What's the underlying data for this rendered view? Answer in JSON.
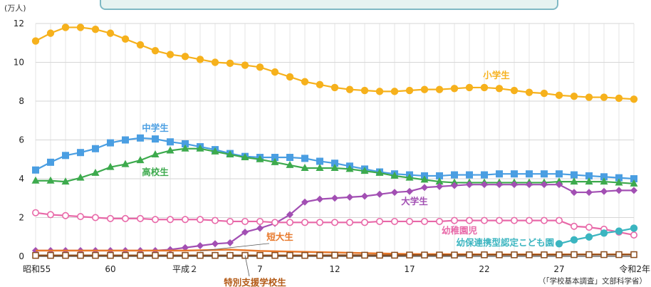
{
  "chart_data": {
    "type": "line",
    "y_unit": "(万人)",
    "ylim": [
      0,
      12
    ],
    "y_ticks": [
      0,
      2,
      4,
      6,
      8,
      10,
      12
    ],
    "x_range": [
      1980,
      2020
    ],
    "x_ticks": [
      {
        "year": 1980,
        "label": "昭和55"
      },
      {
        "year": 1985,
        "label": "60"
      },
      {
        "year": 1990,
        "label": "平成２"
      },
      {
        "year": 1995,
        "label": "7"
      },
      {
        "year": 2000,
        "label": "12"
      },
      {
        "year": 2005,
        "label": "17"
      },
      {
        "year": 2010,
        "label": "22"
      },
      {
        "year": 2015,
        "label": "27"
      },
      {
        "year": 2020,
        "label": "令和2年"
      }
    ],
    "source": "（「学校基本調査」文部科学省）",
    "grid": true,
    "series": [
      {
        "name": "小学生",
        "color": "#f6b11c",
        "marker": "circle",
        "x": [
          1980,
          1981,
          1982,
          1983,
          1984,
          1985,
          1986,
          1987,
          1988,
          1989,
          1990,
          1991,
          1992,
          1993,
          1994,
          1995,
          1996,
          1997,
          1998,
          1999,
          2000,
          2001,
          2002,
          2003,
          2004,
          2005,
          2006,
          2007,
          2008,
          2009,
          2010,
          2011,
          2012,
          2013,
          2014,
          2015,
          2016,
          2017,
          2018,
          2019,
          2020
        ],
        "values": [
          11.1,
          11.5,
          11.8,
          11.8,
          11.7,
          11.5,
          11.2,
          10.9,
          10.6,
          10.4,
          10.3,
          10.15,
          10.0,
          9.95,
          9.85,
          9.75,
          9.5,
          9.25,
          9.0,
          8.85,
          8.7,
          8.6,
          8.55,
          8.5,
          8.5,
          8.55,
          8.6,
          8.6,
          8.65,
          8.7,
          8.7,
          8.65,
          8.55,
          8.45,
          8.4,
          8.3,
          8.25,
          8.2,
          8.2,
          8.15,
          8.1
        ]
      },
      {
        "name": "中学生",
        "color": "#4a9ee2",
        "marker": "square",
        "x": [
          1980,
          1981,
          1982,
          1983,
          1984,
          1985,
          1986,
          1987,
          1988,
          1989,
          1990,
          1991,
          1992,
          1993,
          1994,
          1995,
          1996,
          1997,
          1998,
          1999,
          2000,
          2001,
          2002,
          2003,
          2004,
          2005,
          2006,
          2007,
          2008,
          2009,
          2010,
          2011,
          2012,
          2013,
          2014,
          2015,
          2016,
          2017,
          2018,
          2019,
          2020
        ],
        "values": [
          4.45,
          4.85,
          5.2,
          5.35,
          5.55,
          5.85,
          6.0,
          6.1,
          6.05,
          5.9,
          5.8,
          5.65,
          5.5,
          5.3,
          5.15,
          5.1,
          5.1,
          5.1,
          5.05,
          4.9,
          4.8,
          4.65,
          4.5,
          4.35,
          4.25,
          4.2,
          4.15,
          4.15,
          4.2,
          4.2,
          4.2,
          4.25,
          4.25,
          4.25,
          4.25,
          4.25,
          4.2,
          4.15,
          4.1,
          4.05,
          4.0
        ]
      },
      {
        "name": "高校生",
        "color": "#3daa4d",
        "marker": "triangle",
        "x": [
          1980,
          1981,
          1982,
          1983,
          1984,
          1985,
          1986,
          1987,
          1988,
          1989,
          1990,
          1991,
          1992,
          1993,
          1994,
          1995,
          1996,
          1997,
          1998,
          1999,
          2000,
          2001,
          2002,
          2003,
          2004,
          2005,
          2006,
          2007,
          2008,
          2009,
          2010,
          2011,
          2012,
          2013,
          2014,
          2015,
          2016,
          2017,
          2018,
          2019,
          2020
        ],
        "values": [
          3.9,
          3.9,
          3.85,
          4.05,
          4.3,
          4.6,
          4.75,
          4.95,
          5.25,
          5.45,
          5.55,
          5.55,
          5.4,
          5.25,
          5.1,
          5.0,
          4.85,
          4.7,
          4.55,
          4.55,
          4.55,
          4.5,
          4.4,
          4.3,
          4.15,
          4.05,
          3.95,
          3.85,
          3.8,
          3.8,
          3.8,
          3.8,
          3.8,
          3.8,
          3.8,
          3.85,
          3.85,
          3.85,
          3.85,
          3.8,
          3.75
        ]
      },
      {
        "name": "大学生",
        "color": "#a24fb3",
        "marker": "diamond",
        "x": [
          1980,
          1981,
          1982,
          1983,
          1984,
          1985,
          1986,
          1987,
          1988,
          1989,
          1990,
          1991,
          1992,
          1993,
          1994,
          1995,
          1996,
          1997,
          1998,
          1999,
          2000,
          2001,
          2002,
          2003,
          2004,
          2005,
          2006,
          2007,
          2008,
          2009,
          2010,
          2011,
          2012,
          2013,
          2014,
          2015,
          2016,
          2017,
          2018,
          2019,
          2020
        ],
        "values": [
          0.3,
          0.3,
          0.3,
          0.3,
          0.3,
          0.3,
          0.3,
          0.3,
          0.3,
          0.35,
          0.45,
          0.55,
          0.65,
          0.7,
          1.25,
          1.45,
          1.7,
          2.15,
          2.8,
          2.95,
          3.0,
          3.05,
          3.1,
          3.2,
          3.3,
          3.35,
          3.55,
          3.6,
          3.65,
          3.7,
          3.7,
          3.7,
          3.7,
          3.7,
          3.7,
          3.7,
          3.3,
          3.3,
          3.35,
          3.4,
          3.4
        ]
      },
      {
        "name": "幼稚園児",
        "color": "#e868a8",
        "marker": "circle-open",
        "x": [
          1980,
          1981,
          1982,
          1983,
          1984,
          1985,
          1986,
          1987,
          1988,
          1989,
          1990,
          1991,
          1992,
          1993,
          1994,
          1995,
          1996,
          1997,
          1998,
          1999,
          2000,
          2001,
          2002,
          2003,
          2004,
          2005,
          2006,
          2007,
          2008,
          2009,
          2010,
          2011,
          2012,
          2013,
          2014,
          2015,
          2016,
          2017,
          2018,
          2019,
          2020
        ],
        "values": [
          2.25,
          2.15,
          2.1,
          2.05,
          2.0,
          1.95,
          1.95,
          1.95,
          1.9,
          1.9,
          1.9,
          1.9,
          1.85,
          1.8,
          1.8,
          1.8,
          1.75,
          1.75,
          1.75,
          1.75,
          1.75,
          1.75,
          1.75,
          1.8,
          1.8,
          1.8,
          1.8,
          1.8,
          1.85,
          1.85,
          1.85,
          1.85,
          1.85,
          1.85,
          1.85,
          1.85,
          1.55,
          1.5,
          1.4,
          1.25,
          1.1
        ]
      },
      {
        "name": "幼保連携型認定こども園",
        "color": "#3bb5c0",
        "marker": "circle",
        "x": [
          2015,
          2016,
          2017,
          2018,
          2019,
          2020
        ],
        "values": [
          0.65,
          0.85,
          1.0,
          1.2,
          1.3,
          1.45
        ]
      },
      {
        "name": "短大生",
        "color": "#e8782a",
        "marker": "none",
        "x": [
          1980,
          1985,
          1990,
          1993,
          1995,
          2000,
          2005,
          2010,
          2015,
          2020
        ],
        "values": [
          0.3,
          0.3,
          0.3,
          0.35,
          0.28,
          0.2,
          0.12,
          0.1,
          0.1,
          0.1
        ]
      },
      {
        "name": "特別支援学校生",
        "color": "#8a4a1a",
        "marker": "square-open",
        "x": [
          1980,
          1981,
          1982,
          1983,
          1984,
          1985,
          1986,
          1987,
          1988,
          1989,
          1990,
          1991,
          1992,
          1993,
          1994,
          1995,
          1996,
          1997,
          1998,
          1999,
          2000,
          2001,
          2002,
          2003,
          2004,
          2005,
          2006,
          2007,
          2008,
          2009,
          2010,
          2011,
          2012,
          2013,
          2014,
          2015,
          2016,
          2017,
          2018,
          2019,
          2020
        ],
        "values": [
          0.05,
          0.05,
          0.05,
          0.05,
          0.05,
          0.05,
          0.05,
          0.05,
          0.05,
          0.05,
          0.05,
          0.05,
          0.05,
          0.05,
          0.05,
          0.05,
          0.05,
          0.05,
          0.05,
          0.05,
          0.06,
          0.06,
          0.06,
          0.06,
          0.06,
          0.07,
          0.07,
          0.07,
          0.07,
          0.08,
          0.08,
          0.08,
          0.08,
          0.08,
          0.08,
          0.08,
          0.09,
          0.09,
          0.09,
          0.09,
          0.09
        ]
      }
    ]
  }
}
